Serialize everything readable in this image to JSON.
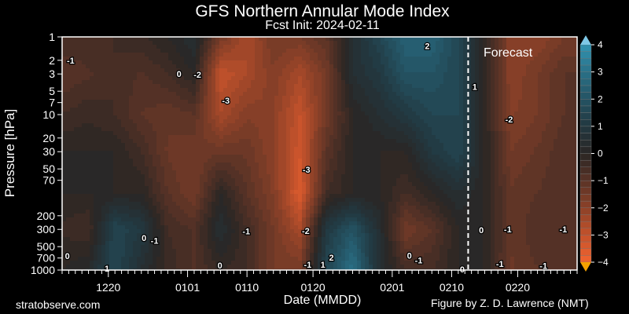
{
  "title": "GFS Northern Annular Mode Index",
  "subtitle": "Fcst Init: 2024-02-11",
  "footer_left": "stratobserve.com",
  "footer_right": "Figure by Z. D. Lawrence (NMT)",
  "chart_data": {
    "type": "heatmap",
    "title": "GFS Northern Annular Mode Index",
    "subtitle": "Fcst Init: 2024-02-11",
    "xlabel": "Date (MMDD)",
    "ylabel": "Pressure [hPa]",
    "x_units": "days since 2023-12-13",
    "xlim": [
      0,
      78
    ],
    "ylim_hPa": [
      1000,
      1
    ],
    "y_scale": "log",
    "x_ticks": [
      {
        "day": 7,
        "label": "1220"
      },
      {
        "day": 19,
        "label": "0101"
      },
      {
        "day": 28,
        "label": "0110"
      },
      {
        "day": 38,
        "label": "0120"
      },
      {
        "day": 50,
        "label": "0201"
      },
      {
        "day": 59,
        "label": "0210"
      },
      {
        "day": 69,
        "label": "0220"
      }
    ],
    "y_ticks": [
      {
        "p": 1,
        "label": "1"
      },
      {
        "p": 2,
        "label": "2"
      },
      {
        "p": 3,
        "label": "3"
      },
      {
        "p": 5,
        "label": "5"
      },
      {
        "p": 7,
        "label": "7"
      },
      {
        "p": 10,
        "label": "10"
      },
      {
        "p": 20,
        "label": "20"
      },
      {
        "p": 30,
        "label": "30"
      },
      {
        "p": 50,
        "label": "50"
      },
      {
        "p": 70,
        "label": "70"
      },
      {
        "p": 200,
        "label": "200"
      },
      {
        "p": 300,
        "label": "300"
      },
      {
        "p": 500,
        "label": "500"
      },
      {
        "p": 700,
        "label": "700"
      },
      {
        "p": 1000,
        "label": "1000"
      }
    ],
    "forecast_start_day": 61.5,
    "forecast_label": "Forecast",
    "grid_days": [
      0,
      4,
      8,
      12,
      16,
      20,
      24,
      28,
      32,
      36,
      40,
      44,
      48,
      52,
      56,
      60,
      64,
      68,
      72,
      76,
      78
    ],
    "grid_levels_hPa": [
      1,
      3,
      10,
      30,
      100,
      300,
      1000
    ],
    "values": [
      [
        -0.5,
        -1,
        -0.5,
        0,
        0,
        -0.3,
        0
      ],
      [
        -0.5,
        -0.8,
        -0.3,
        0,
        0,
        -0.5,
        0.3
      ],
      [
        -0.5,
        -0.5,
        -0.5,
        0,
        0,
        1.5,
        1.5
      ],
      [
        -0.3,
        -0.8,
        -1,
        -0.5,
        0,
        1,
        0.5
      ],
      [
        0,
        -0.5,
        -1.2,
        -1.3,
        -1,
        -0.5,
        -0.3
      ],
      [
        0.5,
        0,
        -1,
        -1.5,
        -1.5,
        -0.8,
        -0.8
      ],
      [
        -1.5,
        -3,
        -2.5,
        -1.3,
        0,
        0.5,
        -0.2
      ],
      [
        -2.5,
        -2.5,
        -1.8,
        -1.3,
        -1,
        -0.5,
        -0.5
      ],
      [
        -1.5,
        -1.8,
        -2,
        -2,
        -1.8,
        -1.5,
        -1.5
      ],
      [
        -1.5,
        -2.5,
        -3,
        -3.2,
        -3.5,
        -2.5,
        -1.5
      ],
      [
        -1,
        -1.5,
        -1.5,
        -1,
        -0.5,
        1,
        1.5
      ],
      [
        0.5,
        0.5,
        0,
        0,
        0,
        2,
        3
      ],
      [
        1.5,
        1,
        0.5,
        0,
        0,
        0.5,
        0.5
      ],
      [
        2.5,
        2,
        1,
        0,
        -0.5,
        -1.5,
        -0.5
      ],
      [
        2.5,
        2,
        1.5,
        1,
        0,
        -1,
        -0.5
      ],
      [
        1.5,
        1.5,
        1.5,
        1.5,
        0.5,
        0,
        0
      ],
      [
        0,
        0,
        0,
        0,
        0,
        0,
        0
      ],
      [
        -2,
        -2,
        -1.8,
        -1.5,
        -1.2,
        -1.2,
        -1.3
      ],
      [
        -2,
        -1.5,
        -1.5,
        -1.2,
        -1,
        -0.8,
        -1
      ],
      [
        -1.5,
        -1,
        -1,
        -0.8,
        -0.8,
        -1,
        -0.8
      ],
      [
        -1.5,
        -1,
        -1,
        -0.8,
        -0.8,
        -1,
        -0.8
      ]
    ],
    "colorbar": {
      "min": -4,
      "max": 4,
      "step": 0.25,
      "ticks": [
        "-4",
        "-3",
        "-2",
        "-1",
        "0",
        "1",
        "2",
        "3",
        "4"
      ],
      "extend": "both"
    },
    "colors": {
      "neg_max": "#f26430",
      "zero": "#2a2624",
      "pos_max": "#3294b2",
      "over": "#7ec8e6",
      "under": "#f5a000"
    },
    "contour_labels": [
      {
        "day": 1.3,
        "p": 2.0,
        "text": "-1"
      },
      {
        "day": 17.7,
        "p": 3.0,
        "text": "0"
      },
      {
        "day": 20.5,
        "p": 3.05,
        "text": "-2"
      },
      {
        "day": 24.8,
        "p": 6.6,
        "text": "-3"
      },
      {
        "day": 37,
        "p": 51,
        "text": "-3"
      },
      {
        "day": 36.9,
        "p": 313,
        "text": "-2"
      },
      {
        "day": 37.2,
        "p": 850,
        "text": "-1"
      },
      {
        "day": 40.8,
        "p": 690,
        "text": "2"
      },
      {
        "day": 39.5,
        "p": 850,
        "text": "1"
      },
      {
        "day": 23.9,
        "p": 870,
        "text": "0"
      },
      {
        "day": 27.9,
        "p": 315,
        "text": "-1"
      },
      {
        "day": 12.4,
        "p": 385,
        "text": "0"
      },
      {
        "day": 14,
        "p": 420,
        "text": "-1"
      },
      {
        "day": 6.8,
        "p": 950,
        "text": "1"
      },
      {
        "day": 0.8,
        "p": 660,
        "text": "0"
      },
      {
        "day": 55.3,
        "p": 1.3,
        "text": "2"
      },
      {
        "day": 62.5,
        "p": 4.4,
        "text": "1"
      },
      {
        "day": 67.7,
        "p": 11.5,
        "text": "-2"
      },
      {
        "day": 63.5,
        "p": 305,
        "text": "0"
      },
      {
        "day": 67.5,
        "p": 300,
        "text": "-1"
      },
      {
        "day": 75.9,
        "p": 300,
        "text": "-1"
      },
      {
        "day": 66.3,
        "p": 830,
        "text": "-1"
      },
      {
        "day": 72.9,
        "p": 880,
        "text": "-1"
      },
      {
        "day": 52.6,
        "p": 650,
        "text": "0"
      },
      {
        "day": 54,
        "p": 750,
        "text": "-1"
      },
      {
        "day": 60.6,
        "p": 980,
        "text": "0"
      }
    ]
  }
}
